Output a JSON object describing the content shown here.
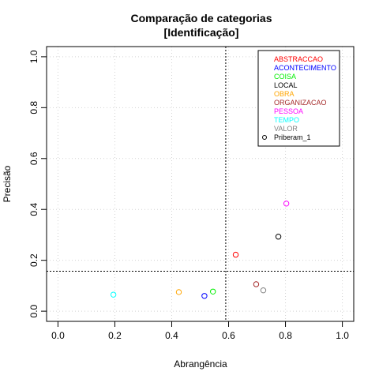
{
  "chart_data": {
    "type": "scatter",
    "title_lines": [
      "Comparação de categorias",
      "[Identificação]"
    ],
    "xlabel": "Abrangência",
    "ylabel": "Precisão",
    "xlim": [
      -0.04,
      1.04
    ],
    "ylim": [
      -0.04,
      1.04
    ],
    "xticks": [
      0.0,
      0.2,
      0.4,
      0.6,
      0.8,
      1.0
    ],
    "yticks": [
      0.0,
      0.2,
      0.4,
      0.6,
      0.8,
      1.0
    ],
    "tick_labels": [
      "0.0",
      "0.2",
      "0.4",
      "0.6",
      "0.8",
      "1.0"
    ],
    "grid": true,
    "reference_lines": {
      "vertical_x": 0.59,
      "horizontal_y": 0.157
    },
    "legend_position": "top-right",
    "categories": [
      {
        "name": "ABSTRACCAO",
        "color": "#ff0000",
        "x": 0.625,
        "y": 0.222
      },
      {
        "name": "ACONTECIMENTO",
        "color": "#0000ff",
        "x": 0.515,
        "y": 0.06
      },
      {
        "name": "COISA",
        "color": "#00ee00",
        "x": 0.545,
        "y": 0.077
      },
      {
        "name": "LOCAL",
        "color": "#000000",
        "x": 0.775,
        "y": 0.293
      },
      {
        "name": "OBRA",
        "color": "#ffa500",
        "x": 0.425,
        "y": 0.075
      },
      {
        "name": "ORGANIZACAO",
        "color": "#a52a2a",
        "x": 0.697,
        "y": 0.106
      },
      {
        "name": "PESSOA",
        "color": "#ff00ff",
        "x": 0.803,
        "y": 0.423
      },
      {
        "name": "TEMPO",
        "color": "#00ffff",
        "x": 0.195,
        "y": 0.065
      },
      {
        "name": "VALOR",
        "color": "#808080",
        "x": 0.722,
        "y": 0.082
      }
    ],
    "legend_symbol_entry": {
      "label": "Priberam_1",
      "color": "#000000"
    }
  }
}
